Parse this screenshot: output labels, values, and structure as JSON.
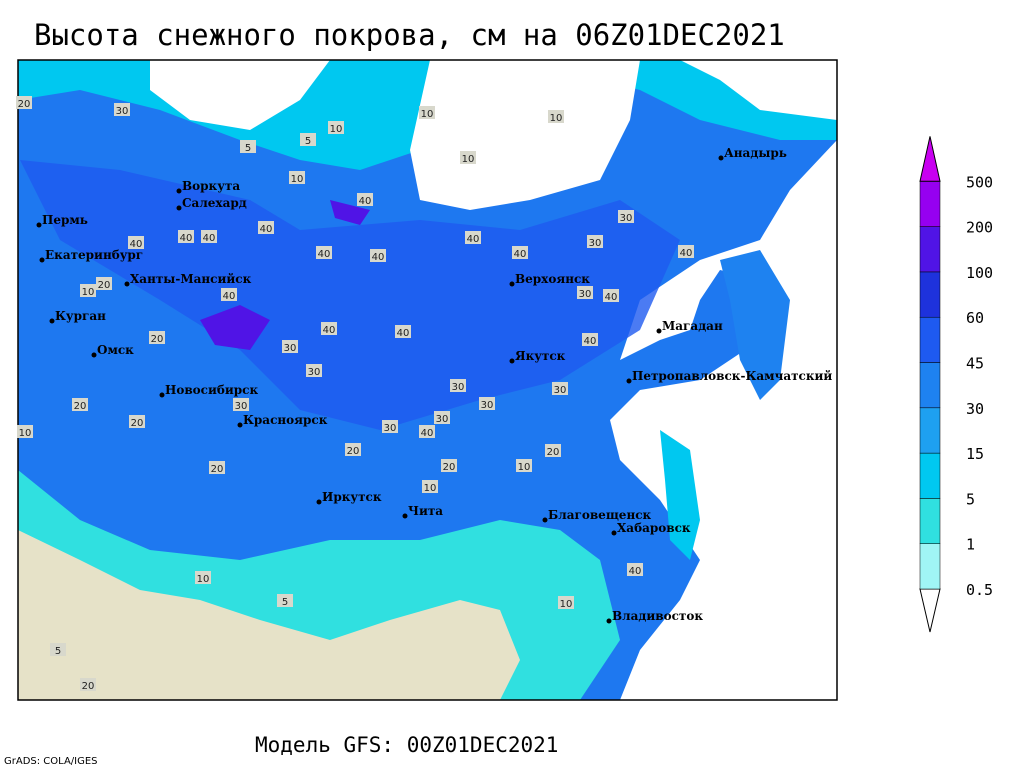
{
  "header": {
    "title": "Высота снежного покрова, см на 06Z01DEC2021"
  },
  "map": {
    "cities": [
      "Воркута",
      "Салехард",
      "Пермь",
      "Екатеринбург",
      "Ханты-Мансийск",
      "Курган",
      "Омск",
      "Новосибирск",
      "Красноярск",
      "Иркутск",
      "Чита",
      "Верхоянск",
      "Якутск",
      "Магадан",
      "Анадырь",
      "Петропавловск-Камчатский",
      "Благовещенск",
      "Хабаровск",
      "Владивосток"
    ],
    "contour_labels": [
      10,
      10,
      10,
      10,
      5,
      5,
      10,
      40,
      40,
      40,
      40,
      40,
      40,
      40,
      40,
      40,
      40,
      40,
      40,
      30,
      30,
      40,
      30,
      40,
      40,
      30,
      30,
      30,
      30,
      30,
      40,
      30,
      20,
      20,
      20,
      20,
      30,
      30,
      10,
      10,
      20,
      20,
      5,
      10,
      20,
      5,
      10,
      40,
      20,
      20,
      10,
      20,
      30,
      10
    ]
  },
  "legend": {
    "levels": [
      0.5,
      1,
      5,
      15,
      30,
      45,
      60,
      100,
      200,
      500
    ],
    "colors": [
      "#ffffff",
      "#a0f5f5",
      "#30e0e0",
      "#00c8f0",
      "#1ea0f0",
      "#1e82f0",
      "#1e5af0",
      "#1e32dc",
      "#5014e6",
      "#9600f0",
      "#c800f0"
    ]
  },
  "footer": {
    "model": "Модель GFS: 00Z01DEC2021",
    "credit": "GrADS: COLA/IGES"
  }
}
